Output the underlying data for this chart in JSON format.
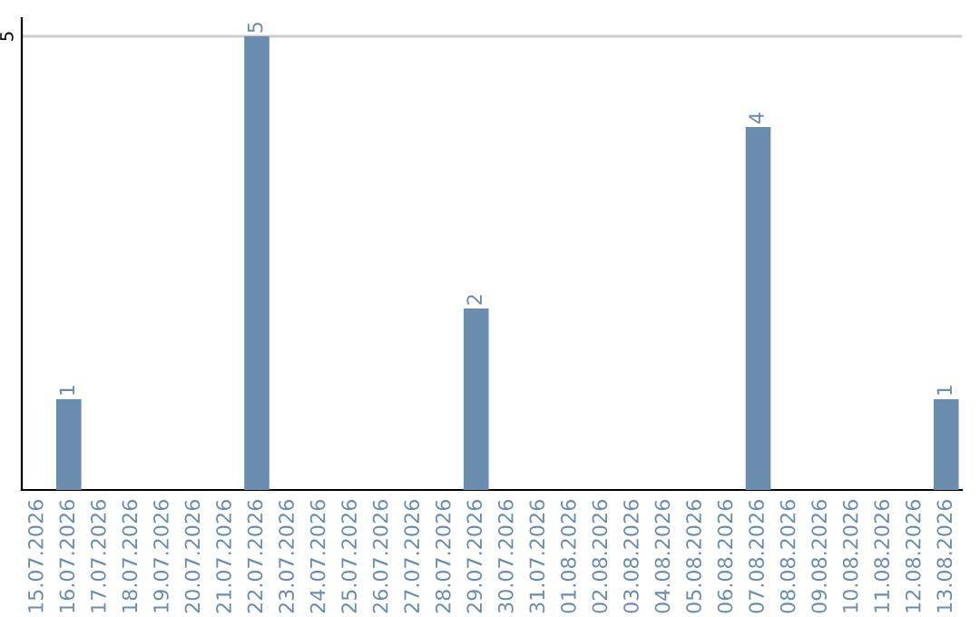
{
  "chart_data": {
    "type": "bar",
    "categories": [
      "15.07.2026",
      "16.07.2026",
      "17.07.2026",
      "18.07.2026",
      "19.07.2026",
      "20.07.2026",
      "21.07.2026",
      "22.07.2026",
      "23.07.2026",
      "24.07.2026",
      "25.07.2026",
      "26.07.2026",
      "27.07.2026",
      "28.07.2026",
      "29.07.2026",
      "30.07.2026",
      "31.07.2026",
      "01.08.2026",
      "02.08.2026",
      "03.08.2026",
      "04.08.2026",
      "05.08.2026",
      "06.08.2026",
      "07.08.2026",
      "08.08.2026",
      "09.08.2026",
      "10.08.2026",
      "11.08.2026",
      "12.08.2026",
      "13.08.2026"
    ],
    "values": [
      0,
      1,
      0,
      0,
      0,
      0,
      0,
      5,
      0,
      0,
      0,
      0,
      0,
      0,
      2,
      0,
      0,
      0,
      0,
      0,
      0,
      0,
      0,
      4,
      0,
      0,
      0,
      0,
      0,
      1
    ],
    "value_labels": [
      null,
      "1",
      null,
      null,
      null,
      null,
      null,
      "5",
      null,
      null,
      null,
      null,
      null,
      null,
      "2",
      null,
      null,
      null,
      null,
      null,
      null,
      null,
      null,
      "4",
      null,
      null,
      null,
      null,
      null,
      "1"
    ],
    "color": "#6a8caf",
    "ylim": [
      0,
      5.2
    ],
    "yticks": [
      5
    ],
    "grid": "y"
  }
}
